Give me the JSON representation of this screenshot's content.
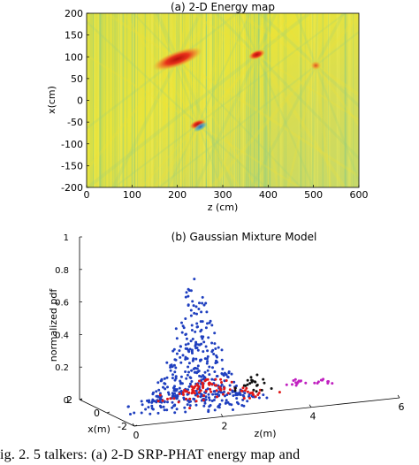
{
  "caption": "ig. 2.   5 talkers:  (a) 2-D SRP-PHAT energy map and",
  "chart_data": [
    {
      "type": "heatmap",
      "title": "(a) 2-D Energy map",
      "xlabel": "z (cm)",
      "ylabel": "x(cm)",
      "xlim": [
        0,
        600
      ],
      "ylim": [
        -200,
        200
      ],
      "x_ticks": [
        "0",
        "100",
        "200",
        "300",
        "400",
        "500",
        "600"
      ],
      "y_ticks": [
        "200",
        "150",
        "100",
        "50",
        "0",
        "-50",
        "-100",
        "-150",
        "-200"
      ],
      "colors": {
        "background": "#e6e23a",
        "high": "#d81f14",
        "low": "#2f8fd6",
        "mid": "#7fc88a"
      },
      "peaks": [
        {
          "z": 200,
          "x": 95,
          "level": "high"
        },
        {
          "z": 245,
          "x": -55,
          "level": "high"
        },
        {
          "z": 375,
          "x": 105,
          "level": "high"
        },
        {
          "z": 505,
          "x": 80,
          "level": "medium"
        }
      ]
    },
    {
      "type": "scatter",
      "title": "(b) Gaussian Mixture Model",
      "zlabel": "normalized pdf",
      "xlabel": "z(m)",
      "ylabel": "x(m)",
      "zlim": [
        0,
        1
      ],
      "z_ticks": [
        "0",
        "0.2",
        "0.4",
        "0.6",
        "0.8",
        "1"
      ],
      "x_ticks": [
        "0",
        "2",
        "4",
        "6"
      ],
      "y_ticks": [
        "2",
        "0",
        "-2"
      ],
      "series": [
        {
          "color": "#1f3fbf",
          "center_z_m": 2.0,
          "center_x_m": 0.0,
          "peak_pdf": 0.8
        },
        {
          "color": "#e01818",
          "center_z_m": 2.5,
          "center_x_m": 0.5,
          "peak_pdf": 0.13
        },
        {
          "color": "#111111",
          "center_z_m": 3.7,
          "center_x_m": 1.0,
          "peak_pdf": 0.1
        },
        {
          "color": "#c020c0",
          "center_z_m": 4.6,
          "center_x_m": 1.0,
          "peak_pdf": 0.05
        },
        {
          "color": "#c020c0",
          "center_z_m": 5.1,
          "center_x_m": 0.8,
          "peak_pdf": 0.04
        }
      ]
    }
  ]
}
